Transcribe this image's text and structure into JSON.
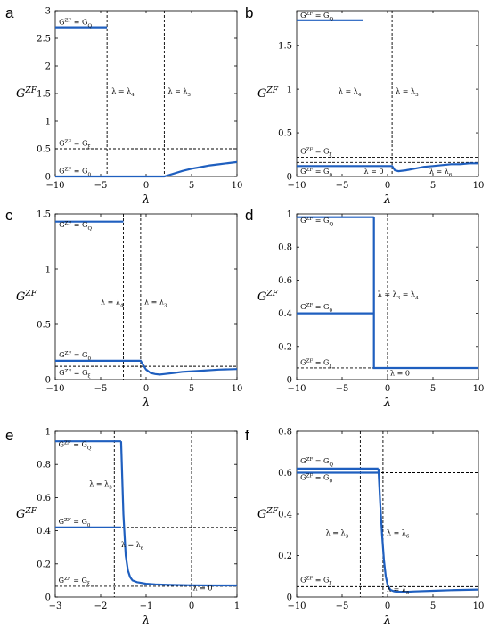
{
  "chart_data": [
    {
      "panel": "a",
      "type": "line",
      "xlabel": "λ",
      "ylabel": "G^{ZF}",
      "xlim": [
        -10,
        10
      ],
      "ylim": [
        0,
        3
      ],
      "xticks": [
        "-10",
        "-5",
        "0",
        "5",
        "10"
      ],
      "yticks": [
        "0",
        "0.5",
        "1",
        "1.5",
        "2",
        "2.5",
        "3"
      ],
      "series": [
        {
          "x": [
            -10,
            -4.3
          ],
          "y": [
            2.7,
            2.7
          ]
        },
        {
          "x": [
            -10,
            2,
            3,
            4,
            5,
            6,
            7,
            8,
            9,
            10
          ],
          "y": [
            0,
            0,
            0.05,
            0.1,
            0.14,
            0.17,
            0.2,
            0.22,
            0.24,
            0.26
          ]
        }
      ],
      "hlines": [
        {
          "y": 0.5
        }
      ],
      "vlines": [
        {
          "x": -4.3
        },
        {
          "x": 2
        }
      ],
      "annotations": [
        {
          "text": "G^{ZF} = G_Q",
          "x": -9.6,
          "y": 2.75
        },
        {
          "text": "G^{ZF} = G_ξ",
          "x": -9.6,
          "y": 0.56
        },
        {
          "text": "G^{ZF} = G_0",
          "x": -9.6,
          "y": 0.06
        },
        {
          "text": "λ = λ_4",
          "x": -3.8,
          "y": 1.5
        },
        {
          "text": "λ = λ_3",
          "x": 2.4,
          "y": 1.5
        }
      ]
    },
    {
      "panel": "b",
      "type": "line",
      "xlabel": "λ",
      "ylabel": "G^{ZF}",
      "xlim": [
        -10,
        10
      ],
      "ylim": [
        0,
        1.9
      ],
      "xticks": [
        "-10",
        "-5",
        "0",
        "5",
        "10"
      ],
      "yticks": [
        "0",
        "0.5",
        "1",
        "1.5"
      ],
      "series": [
        {
          "x": [
            -10,
            -2.7
          ],
          "y": [
            1.79,
            1.79
          ]
        },
        {
          "x": [
            -10,
            0.5,
            0.8,
            1.2,
            2,
            3,
            4,
            5,
            6,
            7,
            8,
            9,
            10
          ],
          "y": [
            0.12,
            0.12,
            0.07,
            0.06,
            0.07,
            0.09,
            0.11,
            0.12,
            0.13,
            0.14,
            0.14,
            0.15,
            0.15
          ]
        }
      ],
      "hlines": [
        {
          "y": 0.22
        },
        {
          "y": 0.16
        }
      ],
      "vlines": [
        {
          "x": -2.7
        },
        {
          "x": 0.5
        }
      ],
      "annotations": [
        {
          "text": "G^{ZF} = G_Q",
          "x": -9.6,
          "y": 1.82
        },
        {
          "text": "G^{ZF} = G_ξ",
          "x": -9.6,
          "y": 0.26
        },
        {
          "text": "G^{ZF} = G_0",
          "x": -9.6,
          "y": 0.03
        },
        {
          "text": "λ = λ_4",
          "x": -5.4,
          "y": 0.95
        },
        {
          "text": "λ = λ_3",
          "x": 0.9,
          "y": 0.95
        },
        {
          "text": "λ = 0",
          "x": -2.6,
          "y": 0.03
        },
        {
          "text": "λ = λ_6",
          "x": 4.6,
          "y": 0.03
        }
      ]
    },
    {
      "panel": "c",
      "type": "line",
      "xlabel": "λ",
      "ylabel": "G^{ZF}",
      "xlim": [
        -10,
        10
      ],
      "ylim": [
        0,
        1.5
      ],
      "xticks": [
        "-10",
        "-5",
        "0",
        "5",
        "10"
      ],
      "yticks": [
        "0",
        "0.5",
        "1",
        "1.5"
      ],
      "series": [
        {
          "x": [
            -10,
            -2.5
          ],
          "y": [
            1.43,
            1.43
          ]
        },
        {
          "x": [
            -10,
            -0.6,
            -0.3,
            0,
            0.5,
            1,
            1.5,
            2,
            3,
            4,
            6,
            8,
            10
          ],
          "y": [
            0.17,
            0.17,
            0.13,
            0.09,
            0.06,
            0.05,
            0.045,
            0.05,
            0.06,
            0.07,
            0.08,
            0.09,
            0.095
          ]
        }
      ],
      "hlines": [
        {
          "y": 0.12
        }
      ],
      "vlines": [
        {
          "x": -2.5
        },
        {
          "x": -0.6
        }
      ],
      "annotations": [
        {
          "text": "G^{ZF} = G_Q",
          "x": -9.6,
          "y": 1.38
        },
        {
          "text": "G^{ZF} = G_0",
          "x": -9.6,
          "y": 0.2
        },
        {
          "text": "G^{ZF} = G_ξ",
          "x": -9.6,
          "y": 0.04
        },
        {
          "text": "λ = λ_4",
          "x": -5.0,
          "y": 0.68
        },
        {
          "text": "λ = λ_3",
          "x": -0.2,
          "y": 0.68
        }
      ]
    },
    {
      "panel": "d",
      "type": "line",
      "xlabel": "λ",
      "ylabel": "G^{ZF}",
      "xlim": [
        -10,
        10
      ],
      "ylim": [
        0,
        1
      ],
      "xticks": [
        "-10",
        "-5",
        "0",
        "5",
        "10"
      ],
      "yticks": [
        "0",
        "0.2",
        "0.4",
        "0.6",
        "0.8",
        "1"
      ],
      "series": [
        {
          "x": [
            -10,
            -1.5
          ],
          "y": [
            0.98,
            0.98
          ]
        },
        {
          "x": [
            -10,
            -1.5
          ],
          "y": [
            0.4,
            0.4
          ]
        },
        {
          "x": [
            -1.5,
            -1.5,
            10
          ],
          "y": [
            0.98,
            0.07,
            0.07
          ]
        }
      ],
      "hlines": [
        {
          "y": 0.07
        }
      ],
      "vlines": [
        {
          "x": 0
        }
      ],
      "annotations": [
        {
          "text": "G^{ZF} = G_Q",
          "x": -9.6,
          "y": 0.945
        },
        {
          "text": "G^{ZF} = G_0",
          "x": -9.6,
          "y": 0.425
        },
        {
          "text": "G^{ZF} = G_ξ",
          "x": -9.6,
          "y": 0.09
        },
        {
          "text": "λ = λ_3 = λ_4",
          "x": -1.1,
          "y": 0.5
        },
        {
          "text": "λ = 0",
          "x": 0.3,
          "y": 0.025
        }
      ]
    },
    {
      "panel": "e",
      "type": "line",
      "xlabel": "λ",
      "ylabel": "G^{ZF}",
      "xlim": [
        -3,
        1
      ],
      "ylim": [
        0,
        1
      ],
      "xticks": [
        "-3",
        "-2",
        "-1",
        "0",
        "1"
      ],
      "yticks": [
        "0",
        "0.2",
        "0.4",
        "0.6",
        "0.8",
        "1"
      ],
      "series": [
        {
          "x": [
            -3,
            -1.55
          ],
          "y": [
            0.94,
            0.94
          ]
        },
        {
          "x": [
            -3,
            -1.55
          ],
          "y": [
            0.42,
            0.42
          ]
        },
        {
          "x": [
            -1.55,
            -1.5,
            -1.45,
            -1.4,
            -1.35,
            -1.3,
            -1.2,
            -1.1,
            -1.0,
            -0.8,
            -0.5,
            0,
            0.5,
            1
          ],
          "y": [
            0.94,
            0.5,
            0.25,
            0.16,
            0.12,
            0.1,
            0.09,
            0.085,
            0.08,
            0.076,
            0.073,
            0.071,
            0.07,
            0.07
          ]
        }
      ],
      "hlines": [
        {
          "y": 0.42
        },
        {
          "y": 0.065
        }
      ],
      "vlines": [
        {
          "x": -1.7
        },
        {
          "x": 0
        }
      ],
      "annotations": [
        {
          "text": "G^{ZF} = G_Q",
          "x": -2.93,
          "y": 0.905
        },
        {
          "text": "G^{ZF} = G_0",
          "x": -2.93,
          "y": 0.44
        },
        {
          "text": "G^{ZF} = G_ξ",
          "x": -2.93,
          "y": 0.085
        },
        {
          "text": "λ = λ_3",
          "x": -2.25,
          "y": 0.67
        },
        {
          "text": "λ = λ_6",
          "x": -1.55,
          "y": 0.3
        },
        {
          "text": "λ = 0",
          "x": 0.03,
          "y": 0.04
        }
      ]
    },
    {
      "panel": "f",
      "type": "line",
      "xlabel": "λ",
      "ylabel": "G^{ZF}",
      "xlim": [
        -10,
        10
      ],
      "ylim": [
        0,
        0.8
      ],
      "xticks": [
        "-10",
        "-5",
        "0",
        "5",
        "10"
      ],
      "yticks": [
        "0",
        "0.2",
        "0.4",
        "0.6",
        "0.8"
      ],
      "series": [
        {
          "x": [
            -10,
            -1
          ],
          "y": [
            0.62,
            0.62
          ]
        },
        {
          "x": [
            -10,
            -1
          ],
          "y": [
            0.6,
            0.6
          ]
        },
        {
          "x": [
            -1,
            -0.8,
            -0.6,
            -0.4,
            -0.2,
            0,
            0.3,
            0.7,
            1,
            2,
            3,
            5,
            7,
            10
          ],
          "y": [
            0.62,
            0.45,
            0.3,
            0.18,
            0.1,
            0.06,
            0.035,
            0.028,
            0.026,
            0.025,
            0.027,
            0.03,
            0.033,
            0.036
          ]
        }
      ],
      "hlines": [
        {
          "y": 0.6
        },
        {
          "y": 0.05
        }
      ],
      "vlines": [
        {
          "x": -3
        },
        {
          "x": -0.5
        }
      ],
      "annotations": [
        {
          "text": "G^{ZF} = G_Q",
          "x": -9.6,
          "y": 0.645
        },
        {
          "text": "G^{ZF} = G_0",
          "x": -9.6,
          "y": 0.565
        },
        {
          "text": "G^{ZF} = G_ξ",
          "x": -9.6,
          "y": 0.07
        },
        {
          "text": "λ = λ_3",
          "x": -6.8,
          "y": 0.3
        },
        {
          "text": "λ = λ_6",
          "x": -0.1,
          "y": 0.3
        },
        {
          "text": "λ = λ_5",
          "x": -0.1,
          "y": 0.025
        }
      ]
    }
  ]
}
